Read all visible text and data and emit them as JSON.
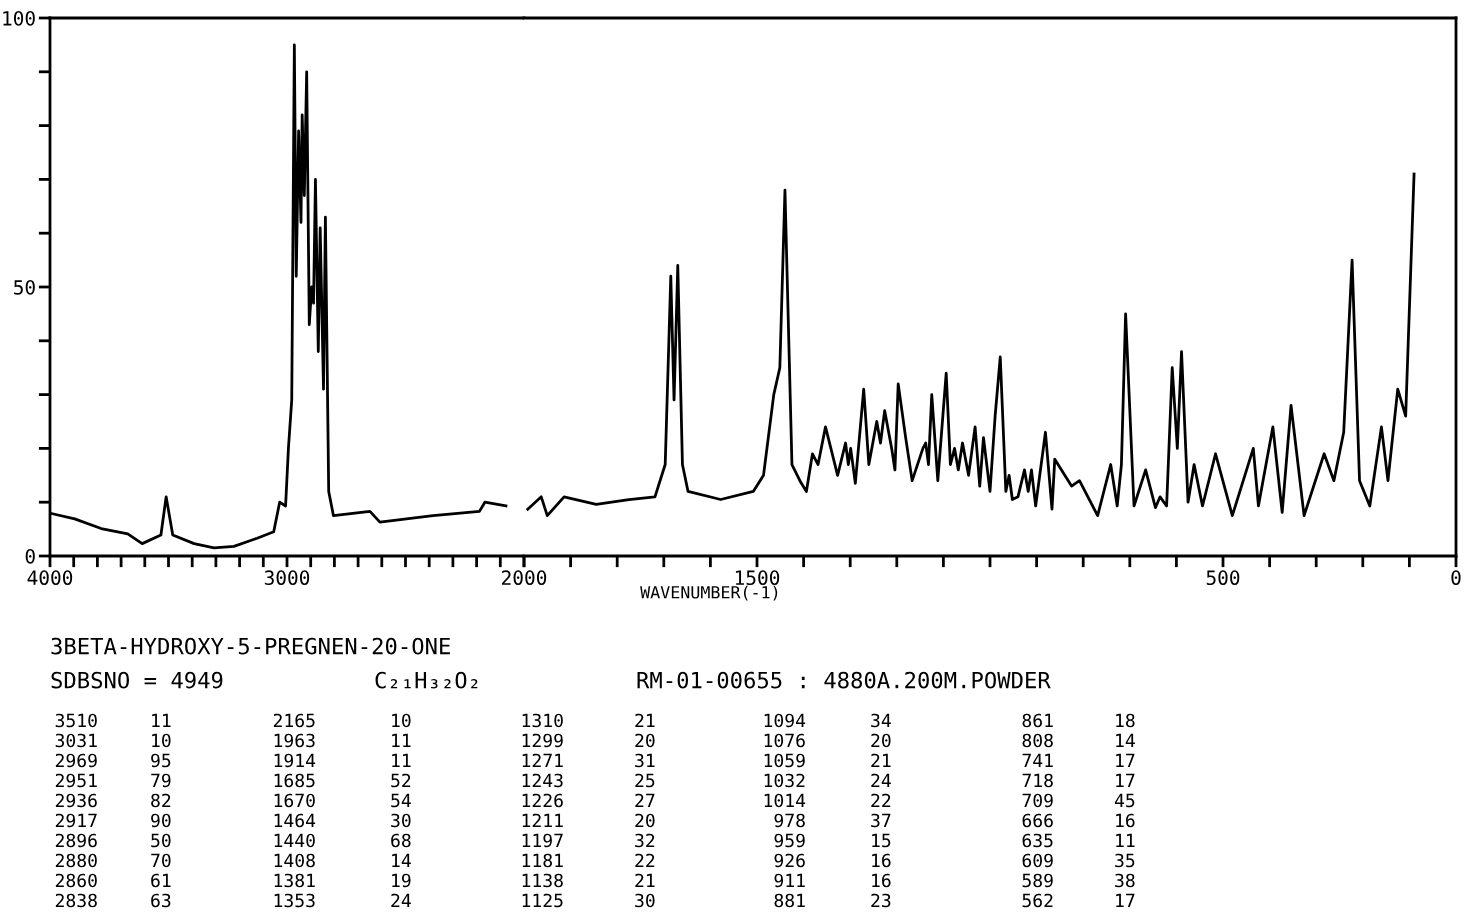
{
  "chart_data": [
    {
      "type": "line",
      "title": "3BETA-HYDROXY-5-PREGNEN-20-ONE",
      "x": [
        3994,
        3896,
        3784,
        3672,
        3611,
        3532,
        3510,
        3482,
        3392,
        3308,
        3224,
        3126,
        3056,
        3031,
        3006,
        2994,
        2980,
        2969,
        2961,
        2951,
        2941,
        2936,
        2927,
        2917,
        2906,
        2896,
        2888,
        2880,
        2868,
        2860,
        2846,
        2838,
        2824,
        2804,
        2650,
        2608,
        2384,
        2188,
        2165,
        2076
      ],
      "series": [
        {
          "color": "#000000",
          "values": [
            7.9,
            6.9,
            5.1,
            4.1,
            2.3,
            3.9,
            11,
            3.9,
            2.3,
            1.5,
            1.8,
            3.3,
            4.5,
            10,
            9.3,
            20,
            29,
            95,
            52,
            79,
            62,
            82,
            67,
            90,
            43,
            50,
            47,
            70,
            38,
            61,
            31,
            63,
            12,
            7.5,
            8.3,
            6.3,
            7.5,
            8.3,
            10,
            9.3
          ]
        }
      ],
      "xlim": [
        4000,
        2000
      ],
      "ylim": [
        0,
        100
      ],
      "xticks": [
        4000,
        {
          "value": 3900,
          "label": null
        },
        {
          "value": 3800,
          "label": null
        },
        {
          "value": 3700,
          "label": null
        },
        {
          "value": 3600,
          "label": null
        },
        {
          "value": 3500,
          "label": null
        },
        {
          "value": 3400,
          "label": null
        },
        {
          "value": 3300,
          "label": null
        },
        {
          "value": 3200,
          "label": null
        },
        {
          "value": 3100,
          "label": null
        },
        3000,
        {
          "value": 2900,
          "label": null
        },
        {
          "value": 2800,
          "label": null
        },
        {
          "value": 2700,
          "label": null
        },
        {
          "value": 2600,
          "label": null
        },
        {
          "value": 2500,
          "label": null
        },
        {
          "value": 2400,
          "label": null
        },
        {
          "value": 2300,
          "label": null
        },
        {
          "value": 2200,
          "label": null
        },
        {
          "value": 2100,
          "label": null
        },
        2000
      ],
      "yticks": [
        0,
        {
          "value": 10,
          "label": null
        },
        {
          "value": 20,
          "label": null
        },
        {
          "value": 30,
          "label": null
        },
        {
          "value": 40,
          "label": null
        },
        50,
        {
          "value": 60,
          "label": null
        },
        {
          "value": 70,
          "label": null
        },
        {
          "value": 80,
          "label": null
        },
        {
          "value": 90,
          "label": null
        },
        100
      ],
      "grid": false,
      "marker": "none",
      "line_style": "solid",
      "annotations": [
        "SDBSNO = 4949",
        "C₂₁H₃₂O₂",
        "RM-01-00655 : 4880A.200M.POWDER",
        "3510",
        "11",
        "3031",
        "10",
        "2969",
        "95",
        "2951",
        "79",
        "2936",
        "82",
        "2917",
        "90",
        "2896",
        "50",
        "2880",
        "70",
        "2860",
        "61",
        "2838",
        "63",
        "2165",
        "10",
        "1963",
        "11",
        "1914",
        "11",
        "1685",
        "52",
        "1670",
        "54",
        "1464",
        "30",
        "1440",
        "68",
        "1408",
        "14",
        "1381",
        "19",
        "1353",
        "24",
        "1310",
        "21",
        "1299",
        "20",
        "1271",
        "31",
        "1243",
        "25",
        "1226",
        "27",
        "1211",
        "20",
        "1197",
        "32",
        "1181",
        "22",
        "1138",
        "21",
        "1125",
        "30",
        "1094",
        "34",
        "1076",
        "20",
        "1059",
        "21",
        "1032",
        "24",
        "1014",
        "22",
        "978",
        "37",
        "959",
        "15",
        "926",
        "16",
        "911",
        "16",
        "881",
        "23",
        "861",
        "18",
        "808",
        "14",
        "741",
        "17",
        "718",
        "17",
        "709",
        "45",
        "666",
        "16",
        "635",
        "11",
        "609",
        "35",
        "589",
        "38",
        "562",
        "17"
      ]
    },
    {
      "type": "line",
      "xlabel": "WAVENUMBER(-1)",
      "x": [
        1992,
        1963,
        1950,
        1914,
        1845,
        1775,
        1719,
        1697,
        1685,
        1678,
        1670,
        1660,
        1648,
        1578,
        1508,
        1486,
        1464,
        1451,
        1440,
        1425,
        1408,
        1394,
        1381,
        1369,
        1353,
        1327,
        1310,
        1304,
        1299,
        1289,
        1271,
        1260,
        1243,
        1235,
        1226,
        1211,
        1204,
        1197,
        1181,
        1167,
        1144,
        1138,
        1132,
        1125,
        1112,
        1094,
        1085,
        1076,
        1068,
        1059,
        1046,
        1032,
        1022,
        1014,
        1000,
        989,
        978,
        966,
        959,
        952,
        940,
        926,
        918,
        911,
        902,
        881,
        867,
        861,
        825,
        808,
        769,
        741,
        727,
        718,
        709,
        691,
        666,
        645,
        635,
        621,
        609,
        598,
        589,
        575,
        562,
        544,
        516,
        480,
        435,
        424,
        393,
        373,
        354,
        326,
        283,
        262,
        241,
        223,
        207,
        185,
        160,
        146,
        125,
        108,
        90
      ],
      "series": [
        {
          "color": "#000000",
          "values": [
            8.7,
            11,
            7.5,
            11,
            9.6,
            10.5,
            11,
            17,
            52,
            29,
            54,
            17,
            12,
            10.5,
            12,
            15,
            30,
            35,
            68,
            17,
            14,
            12,
            19,
            17,
            24,
            15,
            21,
            17,
            20,
            13.5,
            31,
            17,
            25,
            21,
            27,
            20,
            16,
            32,
            22,
            14,
            20,
            21,
            17,
            30,
            14,
            34,
            17,
            20,
            16,
            21,
            15,
            24,
            13,
            22,
            12,
            26,
            37,
            12,
            15,
            10.5,
            11,
            16,
            12,
            16,
            9.3,
            23,
            8.7,
            18,
            13,
            14,
            7.5,
            17,
            9.3,
            17,
            45,
            9.3,
            16,
            9,
            11,
            9.3,
            35,
            20,
            38,
            10,
            17,
            9.3,
            19,
            7.5,
            20,
            9.3,
            24,
            8.1,
            28,
            7.5,
            19,
            14,
            23,
            55,
            14,
            9.3,
            24,
            14,
            31,
            26,
            71
          ]
        }
      ],
      "xlim": [
        2000,
        0
      ],
      "ylim": [
        0,
        100
      ],
      "xticks": [
        {
          "value": 2000,
          "label": null
        },
        {
          "value": 1900,
          "label": null
        },
        {
          "value": 1800,
          "label": null
        },
        {
          "value": 1700,
          "label": null
        },
        {
          "value": 1600,
          "label": null
        },
        1500,
        {
          "value": 1400,
          "label": null
        },
        {
          "value": 1300,
          "label": null
        },
        {
          "value": 1200,
          "label": null
        },
        {
          "value": 1100,
          "label": null
        },
        {
          "value": 1000,
          "label": null
        },
        {
          "value": 900,
          "label": null
        },
        {
          "value": 800,
          "label": null
        },
        {
          "value": 700,
          "label": null
        },
        {
          "value": 600,
          "label": null
        },
        500,
        {
          "value": 400,
          "label": null
        },
        {
          "value": 300,
          "label": null
        },
        {
          "value": 200,
          "label": null
        },
        {
          "value": 100,
          "label": null
        },
        0
      ],
      "tick_labels": "x",
      "grid": false,
      "marker": "none",
      "line_style": "solid"
    }
  ]
}
